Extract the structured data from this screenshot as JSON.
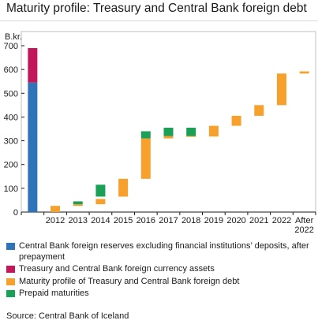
{
  "title": "Maturity profile: Treasury and Central Bank foreign debt",
  "source": "Source: Central Bank of Iceland",
  "colors": {
    "reserves": "#2f73b8",
    "fx_assets": "#c2185b",
    "maturity": "#f7a02c",
    "prepaid": "#1aa157",
    "axis": "#1a1a1a",
    "frame": "#bfbfbf"
  },
  "chart_data": {
    "type": "bar",
    "subtype": "stacked waterfall",
    "ylabel": "B.kr.",
    "ylim": [
      0,
      700
    ],
    "yticks": [
      0,
      100,
      200,
      300,
      400,
      500,
      600,
      700
    ],
    "grid": false,
    "legend_position": "bottom",
    "categories": [
      "",
      "2012",
      "2013",
      "2014",
      "2015",
      "2016",
      "2017",
      "2018",
      "2019",
      "2020",
      "2021",
      "2022",
      "After 2022"
    ],
    "category_labels": [
      [
        ""
      ],
      [
        "2012"
      ],
      [
        "2013"
      ],
      [
        "2014"
      ],
      [
        "2015"
      ],
      [
        "2016"
      ],
      [
        "2017"
      ],
      [
        "2018"
      ],
      [
        "2019"
      ],
      [
        "2020"
      ],
      [
        "2021"
      ],
      [
        "2022"
      ],
      [
        "After",
        "2022"
      ]
    ],
    "series": [
      {
        "name": "Central Bank foreign reserves excluding financial institutions' deposits, after prepayment",
        "color_key": "reserves",
        "segments": [
          {
            "cat": 0,
            "from": 0,
            "to": 545
          }
        ]
      },
      {
        "name": "Treasury and Central Bank foreign currency assets",
        "color_key": "fx_assets",
        "segments": [
          {
            "cat": 0,
            "from": 545,
            "to": 690
          }
        ]
      },
      {
        "name": "Maturity profile of Treasury and Central Bank foreign debt",
        "color_key": "maturity",
        "segments": [
          {
            "cat": 1,
            "from": 0,
            "to": 26
          },
          {
            "cat": 2,
            "from": 26,
            "to": 33
          },
          {
            "cat": 3,
            "from": 33,
            "to": 55
          },
          {
            "cat": 4,
            "from": 65,
            "to": 140
          },
          {
            "cat": 5,
            "from": 140,
            "to": 310
          },
          {
            "cat": 6,
            "from": 310,
            "to": 320
          },
          {
            "cat": 7,
            "from": 318,
            "to": 320
          },
          {
            "cat": 8,
            "from": 318,
            "to": 363
          },
          {
            "cat": 9,
            "from": 363,
            "to": 405
          },
          {
            "cat": 10,
            "from": 405,
            "to": 450
          },
          {
            "cat": 11,
            "from": 450,
            "to": 583
          },
          {
            "cat": 12,
            "from": 583,
            "to": 592
          }
        ]
      },
      {
        "name": "Prepaid maturities",
        "color_key": "prepaid",
        "segments": [
          {
            "cat": 2,
            "from": 33,
            "to": 45
          },
          {
            "cat": 3,
            "from": 65,
            "to": 115
          },
          {
            "cat": 5,
            "from": 310,
            "to": 340
          },
          {
            "cat": 6,
            "from": 320,
            "to": 355
          },
          {
            "cat": 7,
            "from": 320,
            "to": 355
          }
        ]
      }
    ]
  },
  "legend": [
    {
      "label": "Central Bank foreign reserves excluding financial institutions’ deposits, after prepayment",
      "color_key": "reserves"
    },
    {
      "label": "Treasury and Central Bank foreign currency assets",
      "color_key": "fx_assets"
    },
    {
      "label": "Maturity profile of Treasury and Central Bank foreign debt",
      "color_key": "maturity"
    },
    {
      "label": "Prepaid maturities",
      "color_key": "prepaid"
    }
  ]
}
